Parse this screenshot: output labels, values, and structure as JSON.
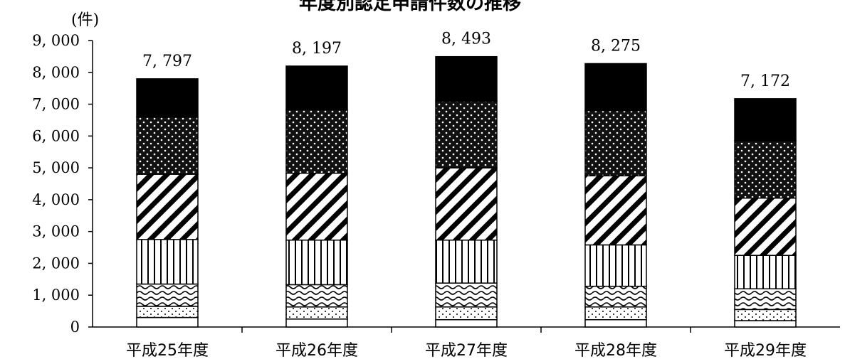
{
  "chart_data": {
    "type": "bar",
    "stacked": true,
    "title": "年度別認定申請件数の推移",
    "unit_label": "(件)",
    "categories": [
      "平成25年度",
      "平成26年度",
      "平成27年度",
      "平成28年度",
      "平成29年度"
    ],
    "totals": [
      7797,
      8197,
      8493,
      8275,
      7172
    ],
    "total_labels": [
      "7, 797",
      "8, 197",
      "8, 493",
      "8, 275",
      "7, 172"
    ],
    "series": [
      {
        "pattern": "blank",
        "values": [
          300,
          250,
          230,
          230,
          200
        ]
      },
      {
        "pattern": "dots",
        "values": [
          350,
          380,
          400,
          400,
          350
        ]
      },
      {
        "pattern": "waves",
        "values": [
          700,
          700,
          750,
          650,
          650
        ]
      },
      {
        "pattern": "vertical",
        "values": [
          1400,
          1400,
          1350,
          1300,
          1050
        ]
      },
      {
        "pattern": "diagonal",
        "values": [
          2050,
          2100,
          2270,
          2170,
          1800
        ]
      },
      {
        "pattern": "stars",
        "values": [
          1800,
          2000,
          2100,
          2050,
          1800
        ]
      },
      {
        "pattern": "solid",
        "values": [
          1197,
          1367,
          1393,
          1475,
          1322
        ]
      }
    ],
    "ylim": [
      0,
      9000
    ],
    "yticks": [
      0,
      1000,
      2000,
      3000,
      4000,
      5000,
      6000,
      7000,
      8000,
      9000
    ],
    "ytick_labels": [
      "0",
      "1, 000",
      "2, 000",
      "3, 000",
      "4, 000",
      "5, 000",
      "6, 000",
      "7, 000",
      "8, 000",
      "9, 000"
    ],
    "grid": false,
    "legend": "none"
  }
}
